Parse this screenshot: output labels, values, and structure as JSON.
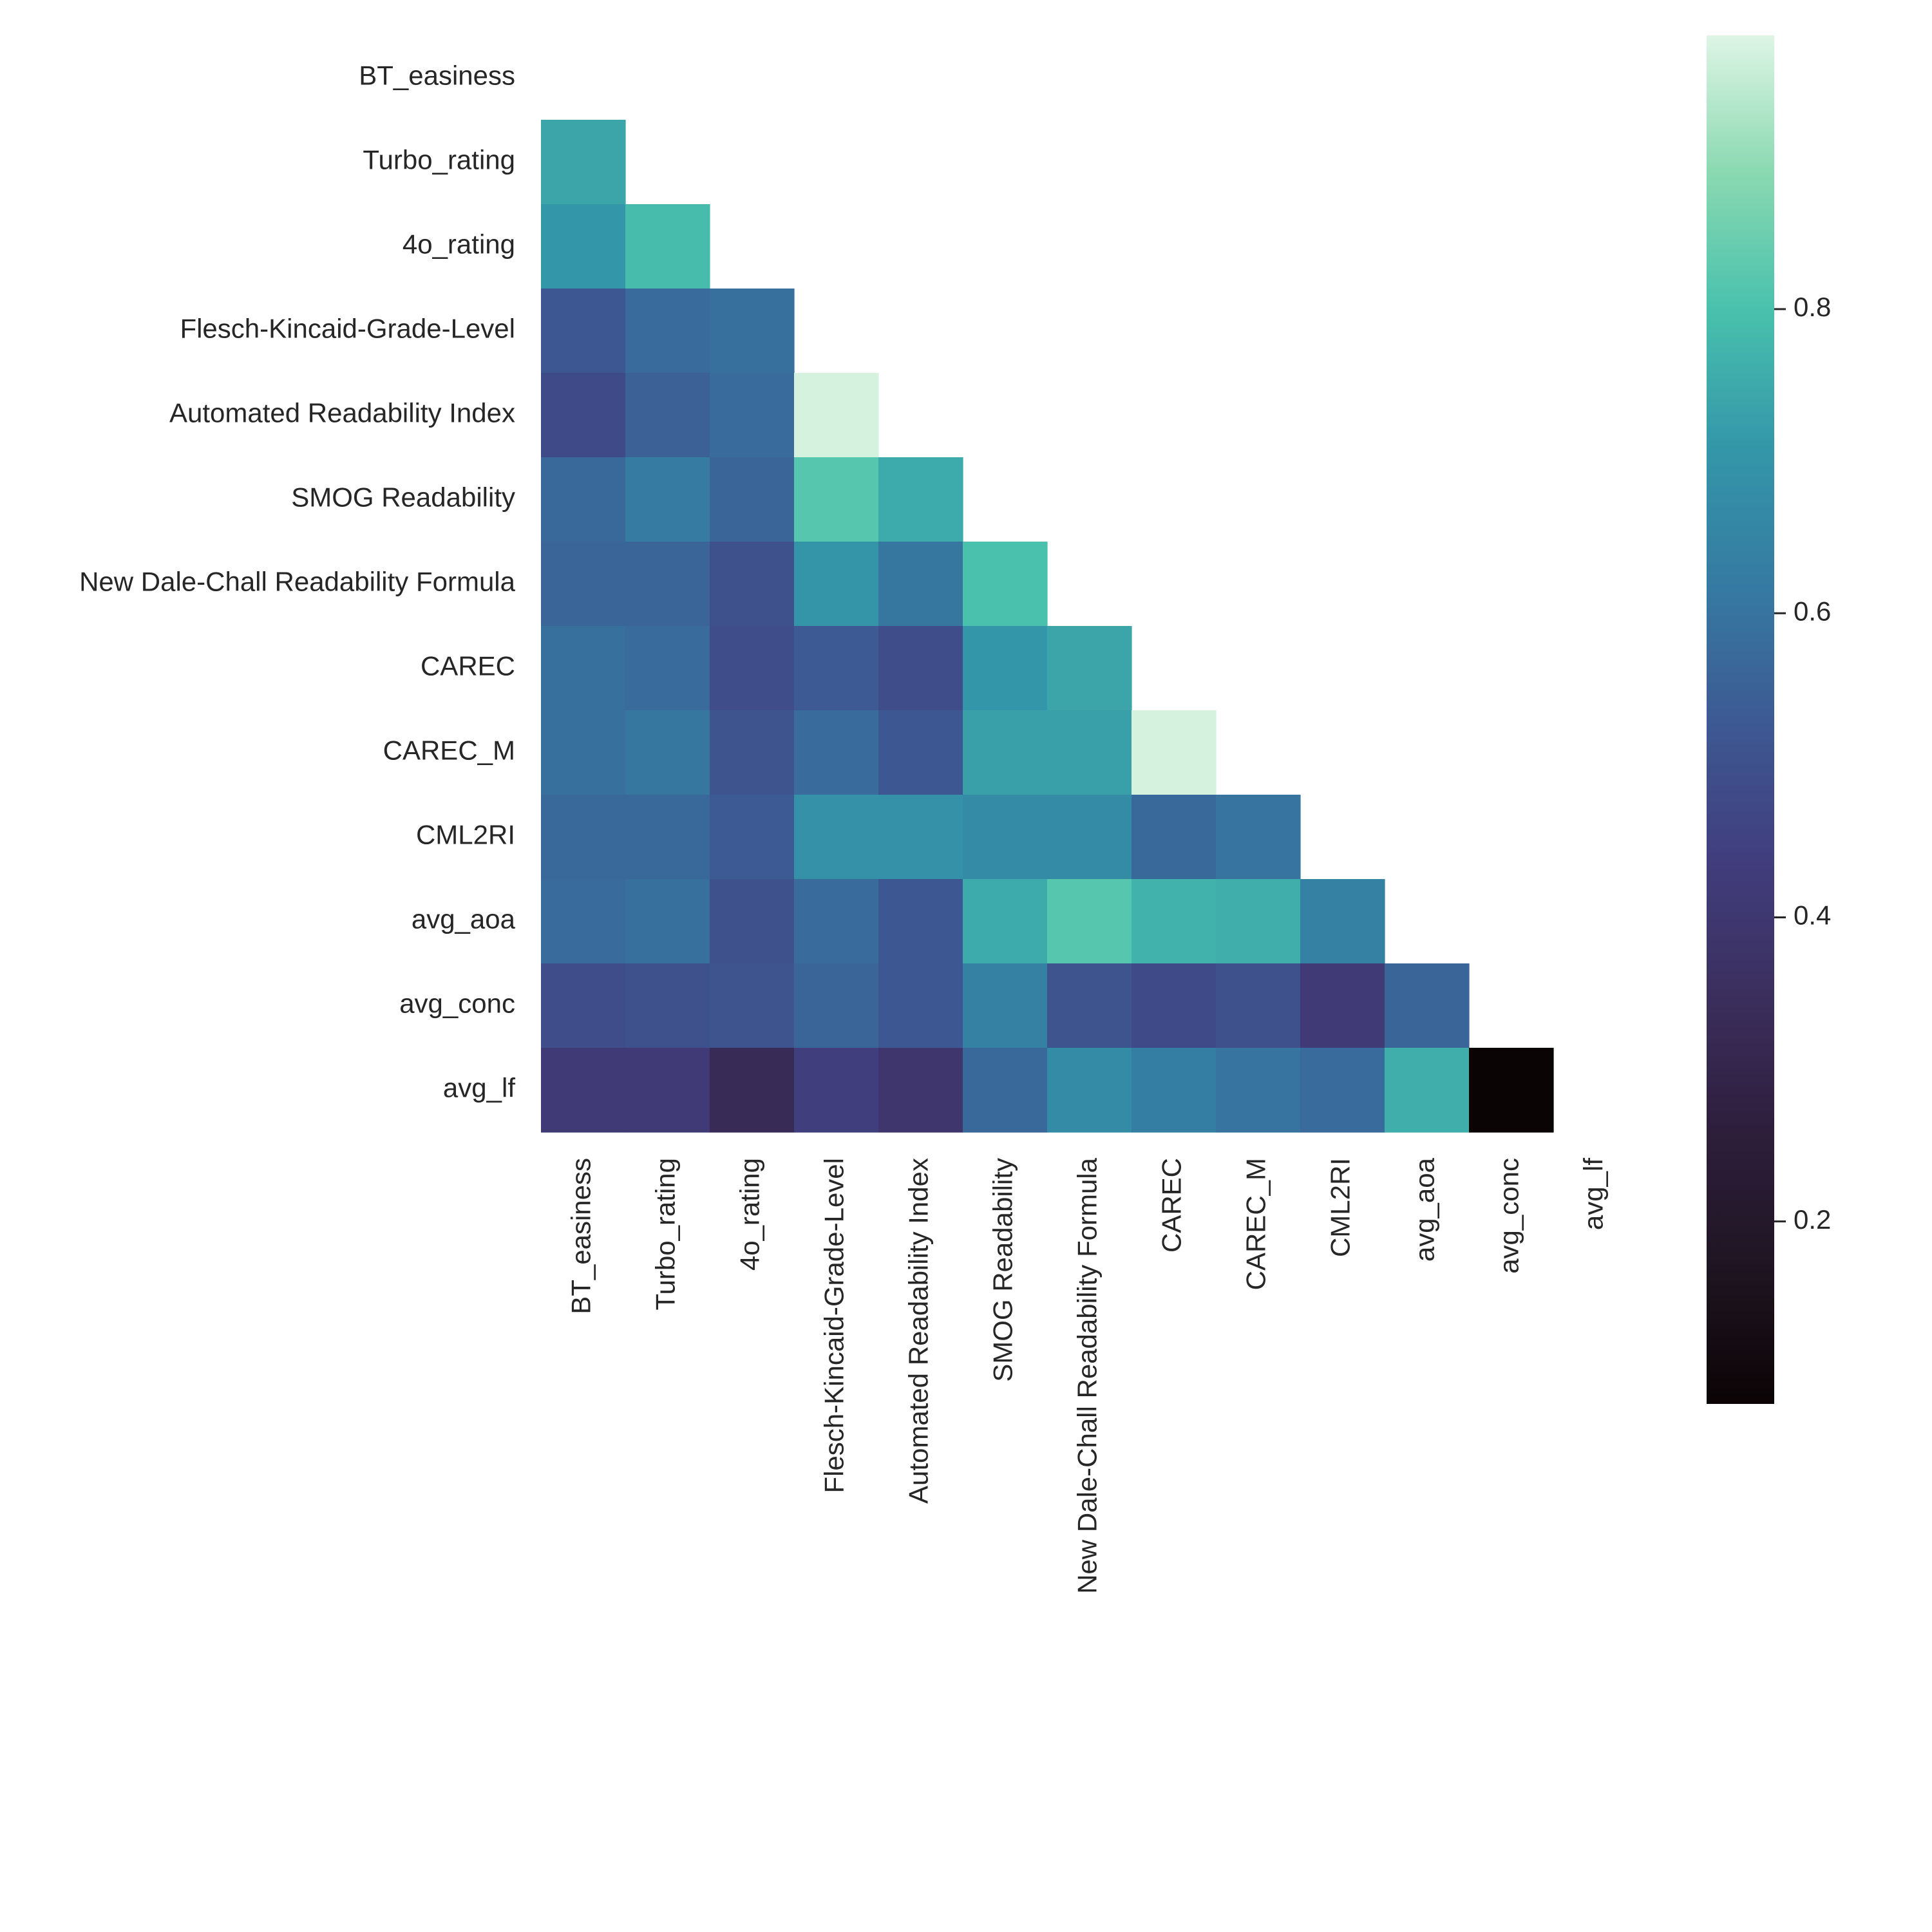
{
  "chart_data": {
    "type": "heatmap",
    "title": "",
    "xlabel": "",
    "ylabel": "",
    "mask": "upper-triangle-including-diagonal",
    "labels": [
      "BT_easiness",
      "Turbo_rating",
      "4o_rating",
      "Flesch-Kincaid-Grade-Level",
      "Automated Readability Index",
      "SMOG Readability",
      "New Dale-Chall Readability Formula",
      "CAREC",
      "CAREC_M",
      "CML2RI",
      "avg_aoa",
      "avg_conc",
      "avg_lf"
    ],
    "values": [
      [
        null,
        null,
        null,
        null,
        null,
        null,
        null,
        null,
        null,
        null,
        null,
        null,
        null
      ],
      [
        0.74,
        null,
        null,
        null,
        null,
        null,
        null,
        null,
        null,
        null,
        null,
        null,
        null
      ],
      [
        0.71,
        0.79,
        null,
        null,
        null,
        null,
        null,
        null,
        null,
        null,
        null,
        null,
        null
      ],
      [
        0.52,
        0.58,
        0.59,
        null,
        null,
        null,
        null,
        null,
        null,
        null,
        null,
        null,
        null
      ],
      [
        0.48,
        0.55,
        0.58,
        0.97,
        null,
        null,
        null,
        null,
        null,
        null,
        null,
        null,
        null
      ],
      [
        0.57,
        0.62,
        0.56,
        0.82,
        0.75,
        null,
        null,
        null,
        null,
        null,
        null,
        null,
        null
      ],
      [
        0.56,
        0.56,
        0.5,
        0.7,
        0.61,
        0.8,
        null,
        null,
        null,
        null,
        null,
        null,
        null
      ],
      [
        0.59,
        0.58,
        0.49,
        0.53,
        0.49,
        0.71,
        0.74,
        null,
        null,
        null,
        null,
        null,
        null
      ],
      [
        0.59,
        0.61,
        0.51,
        0.58,
        0.52,
        0.73,
        0.73,
        0.97,
        null,
        null,
        null,
        null,
        null
      ],
      [
        0.57,
        0.57,
        0.53,
        0.69,
        0.69,
        0.67,
        0.67,
        0.57,
        0.6,
        null,
        null,
        null,
        null
      ],
      [
        0.58,
        0.59,
        0.5,
        0.58,
        0.52,
        0.75,
        0.82,
        0.77,
        0.76,
        0.64,
        null,
        null,
        null
      ],
      [
        0.49,
        0.5,
        0.51,
        0.56,
        0.52,
        0.64,
        0.51,
        0.48,
        0.5,
        0.42,
        0.56,
        null,
        null
      ],
      [
        0.42,
        0.42,
        0.33,
        0.44,
        0.39,
        0.57,
        0.67,
        0.63,
        0.6,
        0.58,
        0.76,
        0.08,
        null
      ]
    ],
    "colormap": "mako",
    "colorbar": {
      "vmin": 0.08,
      "vmax": 0.98,
      "ticks": [
        0.2,
        0.4,
        0.6,
        0.8
      ],
      "tick_labels": [
        "0.2",
        "0.4",
        "0.6",
        "0.8"
      ]
    },
    "colormap_stops": [
      {
        "v": 0.0,
        "color": "#0b0405"
      },
      {
        "v": 0.1,
        "color": "#1f1522"
      },
      {
        "v": 0.2,
        "color": "#2e1e3c"
      },
      {
        "v": 0.3,
        "color": "#3b2f5e"
      },
      {
        "v": 0.4,
        "color": "#413e7e"
      },
      {
        "v": 0.5,
        "color": "#3d5a94"
      },
      {
        "v": 0.6,
        "color": "#357ba2"
      },
      {
        "v": 0.7,
        "color": "#3497a9"
      },
      {
        "v": 0.8,
        "color": "#49c1ad"
      },
      {
        "v": 0.9,
        "color": "#8ad9b1"
      },
      {
        "v": 1.0,
        "color": "#def5e5"
      }
    ]
  }
}
